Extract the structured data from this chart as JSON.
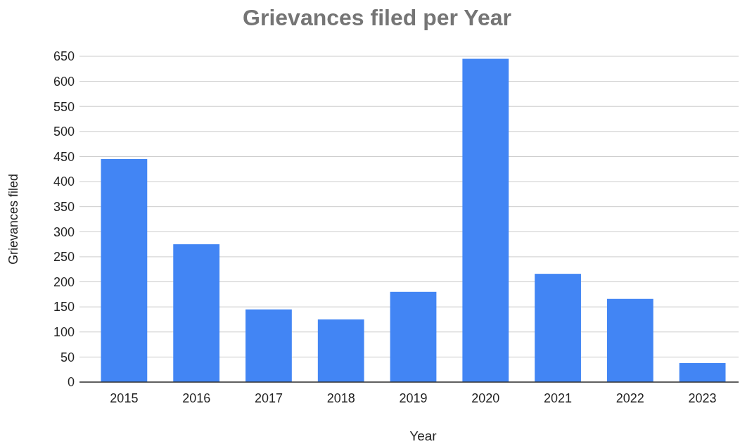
{
  "chart_data": {
    "type": "bar",
    "title": "Grievances filed per Year",
    "xlabel": "Year",
    "ylabel": "Grievances filed",
    "categories": [
      "2015",
      "2016",
      "2017",
      "2018",
      "2019",
      "2020",
      "2021",
      "2022",
      "2023"
    ],
    "values": [
      445,
      275,
      145,
      125,
      180,
      645,
      216,
      166,
      38
    ],
    "color": "#4285f4",
    "ylim": [
      0,
      650
    ],
    "yticks": [
      0,
      50,
      100,
      150,
      200,
      250,
      300,
      350,
      400,
      450,
      500,
      550,
      600,
      650
    ],
    "grid": "y"
  }
}
